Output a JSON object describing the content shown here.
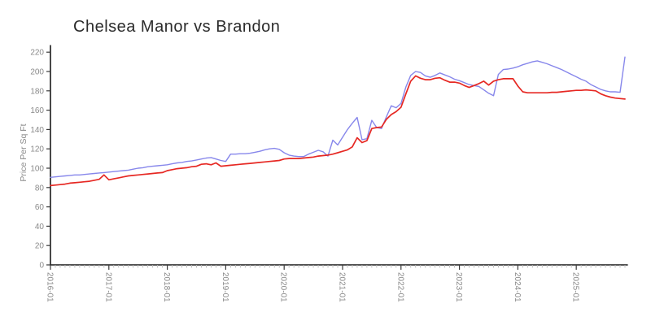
{
  "chart": {
    "title": "Chelsea Manor vs Brandon",
    "ylabel": "Price Per Sq Ft",
    "y_tick_labels": [
      "0",
      "20",
      "40",
      "60",
      "80",
      "100",
      "120",
      "140",
      "160",
      "180",
      "200",
      "220"
    ],
    "x_tick_labels": [
      "2016-01",
      "2017-01",
      "2018-01",
      "2019-01",
      "2020-01",
      "2021-01",
      "2022-01",
      "2023-01",
      "2024-01",
      "2025-01"
    ]
  },
  "chart_data": {
    "type": "line",
    "title": "Chelsea Manor vs Brandon",
    "xlabel": "",
    "ylabel": "Price Per Sq Ft",
    "ylim": [
      0,
      220
    ],
    "y_tick_step": 20,
    "grid": false,
    "legend_position": "none",
    "x_start": "2016-01",
    "x_interval": "monthly",
    "x_major_ticks": [
      "2016-01",
      "2017-01",
      "2018-01",
      "2019-01",
      "2020-01",
      "2021-01",
      "2022-01",
      "2023-01",
      "2024-01",
      "2025-01"
    ],
    "series": [
      {
        "name": "Chelsea Manor",
        "color": "#8787eb",
        "values": [
          90.5,
          91,
          91.5,
          92,
          92.5,
          93,
          93,
          93.5,
          94,
          94.5,
          95,
          95.5,
          96,
          96.5,
          97,
          97.5,
          98,
          99,
          100,
          100.5,
          101.5,
          102,
          102.5,
          103,
          103.5,
          104.5,
          105.5,
          106,
          107,
          107.5,
          108.5,
          109.5,
          110.5,
          111,
          109.5,
          108,
          107,
          114.5,
          114.5,
          115,
          115,
          115.5,
          116.5,
          117.5,
          119,
          120,
          120.5,
          119.5,
          116,
          113.5,
          112.5,
          112,
          112,
          114.5,
          116.5,
          118.5,
          117,
          112.5,
          129,
          124,
          132,
          140,
          146.5,
          152.5,
          129.5,
          130.5,
          149.5,
          142,
          141,
          153,
          164.5,
          162.5,
          167,
          184,
          196,
          200,
          199,
          195.5,
          194,
          196,
          198.5,
          196.5,
          194.5,
          192,
          190.5,
          188.5,
          186.5,
          185.5,
          184.5,
          181,
          177.5,
          175,
          197,
          202,
          202.5,
          203.5,
          205,
          207,
          208.5,
          210,
          211,
          209.5,
          208,
          206,
          204,
          202,
          199.5,
          197,
          194.5,
          192,
          190,
          186.5,
          184,
          181.5,
          180,
          179,
          179,
          178.5,
          215
        ]
      },
      {
        "name": "Brandon",
        "color": "#e62823",
        "values": [
          82,
          82.5,
          83,
          83.5,
          84.5,
          85,
          85.5,
          86,
          86.5,
          87.5,
          88.5,
          93,
          88,
          89,
          90,
          91,
          92,
          92.5,
          93,
          93.5,
          94,
          94.5,
          95,
          95.5,
          97.5,
          98.5,
          99.5,
          100,
          100.5,
          101.5,
          102,
          104,
          104.5,
          103.5,
          105.5,
          102,
          102.5,
          103,
          103.5,
          104,
          104.5,
          105,
          105.5,
          106,
          106.5,
          107,
          107.5,
          108,
          109.5,
          110,
          110,
          110,
          110.5,
          111,
          111.5,
          112.5,
          113,
          113.5,
          114.5,
          116,
          117.5,
          119,
          122,
          131.5,
          126.5,
          128.5,
          141,
          142,
          142.5,
          150.5,
          155.5,
          158.5,
          163,
          177,
          190,
          195.5,
          193,
          191.5,
          191.5,
          193,
          193.5,
          191,
          189,
          189,
          188,
          185.5,
          183.5,
          185.5,
          187.5,
          190,
          186,
          190,
          191.5,
          192.5,
          192.5,
          192.5,
          185,
          179,
          178,
          178,
          178,
          178,
          178,
          178.5,
          178.5,
          179,
          179.5,
          180,
          180.5,
          180.5,
          181,
          180.5,
          180,
          177,
          175,
          173.5,
          172.5,
          172,
          171.5
        ]
      }
    ]
  }
}
